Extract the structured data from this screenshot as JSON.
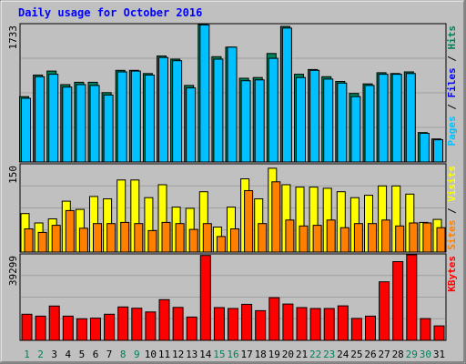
{
  "chart_data": {
    "type": "bar",
    "title": "Daily usage for October 2016",
    "categories": [
      "1",
      "2",
      "3",
      "4",
      "5",
      "6",
      "7",
      "8",
      "9",
      "10",
      "11",
      "12",
      "13",
      "14",
      "15",
      "16",
      "17",
      "18",
      "19",
      "20",
      "21",
      "22",
      "23",
      "24",
      "25",
      "26",
      "27",
      "28",
      "29",
      "30",
      "31"
    ],
    "weekend_days": [
      "1",
      "2",
      "8",
      "9",
      "15",
      "16",
      "22",
      "23",
      "29",
      "30"
    ],
    "panels": [
      {
        "id": "requests",
        "ymax_label": "1733",
        "ylim": [
          0,
          1733
        ],
        "legend": [
          "Pages",
          "Files",
          "Hits"
        ],
        "series": [
          {
            "name": "Hits",
            "color": "#00805c",
            "values": [
              830,
              1100,
              1150,
              980,
              1010,
              1010,
              880,
              1160,
              1160,
              1120,
              1340,
              1300,
              970,
              1733,
              1330,
              1450,
              1060,
              1070,
              1370,
              1710,
              1110,
              1170,
              1080,
              1020,
              870,
              990,
              1130,
              1120,
              1140,
              380,
              300
            ]
          },
          {
            "name": "Files",
            "color": "#00c0ff",
            "values": [
              810,
              1080,
              1110,
              950,
              980,
              970,
              850,
              1140,
              1150,
              1100,
              1320,
              1280,
              940,
              1730,
              1300,
              1450,
              1030,
              1040,
              1310,
              1690,
              1070,
              1160,
              1050,
              1000,
              830,
              970,
              1110,
              1110,
              1120,
              370,
              290
            ]
          },
          {
            "name": "Pages",
            "color": "#0000ff",
            "values": [
              0,
              0,
              0,
              0,
              0,
              0,
              0,
              0,
              0,
              0,
              0,
              0,
              0,
              0,
              0,
              0,
              0,
              0,
              0,
              0,
              0,
              0,
              0,
              0,
              0,
              0,
              0,
              0,
              0,
              0,
              0
            ]
          }
        ]
      },
      {
        "id": "visitors",
        "ymax_label": "150",
        "ylim": [
          0,
          150
        ],
        "legend": [
          "Sites",
          "Visits"
        ],
        "series": [
          {
            "name": "Visits",
            "color": "#ffff00",
            "values": [
              67,
              51,
              58,
              88,
              74,
              96,
              92,
              124,
              124,
              94,
              116,
              78,
              76,
              104,
              44,
              78,
              126,
              92,
              144,
              116,
              112,
              112,
              110,
              104,
              94,
              98,
              114,
              114,
              100,
              52,
              57
            ]
          },
          {
            "name": "Sites",
            "color": "#ff8000",
            "values": [
              41,
              35,
              47,
              72,
              42,
              50,
              50,
              52,
              50,
              38,
              52,
              50,
              40,
              50,
              28,
              41,
              106,
              50,
              121,
              56,
              46,
              47,
              56,
              43,
              50,
              50,
              56,
              46,
              51,
              51,
              43
            ]
          }
        ]
      },
      {
        "id": "kbytes",
        "ymax_label": "39299",
        "ylim": [
          0,
          39299
        ],
        "legend": [
          "KBytes"
        ],
        "series": [
          {
            "name": "KBytes",
            "color": "#ff0000",
            "values": [
              12300,
              11400,
              16000,
              11400,
              10200,
              10500,
              12300,
              15600,
              15000,
              13300,
              18900,
              15400,
              11000,
              39000,
              15300,
              14900,
              16800,
              13900,
              19800,
              16900,
              15300,
              14900,
              14900,
              16100,
              10400,
              11400,
              27000,
              36200,
              39299,
              10300,
              7000
            ]
          }
        ]
      }
    ]
  }
}
